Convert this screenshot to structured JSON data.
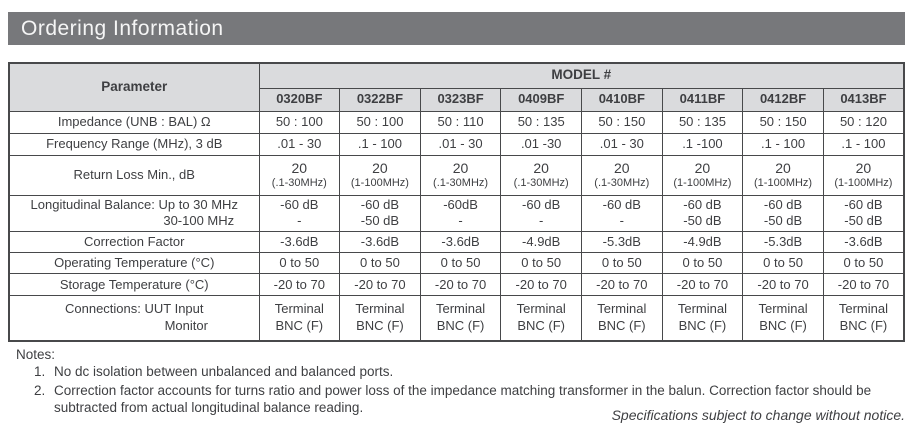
{
  "page": {
    "title": "Ordering Information"
  },
  "theme": {
    "title_bar_bg": "#77787B",
    "header_bg": "#DADBDD",
    "border": "#48494B",
    "text": "#3E3F42"
  },
  "table": {
    "parameter_header": "Parameter",
    "model_group_header": "MODEL #",
    "models": [
      "0320BF",
      "0322BF",
      "0323BF",
      "0409BF",
      "0410BF",
      "0411BF",
      "0412BF",
      "0413BF"
    ],
    "impedance": {
      "label": "Impedance (UNB : BAL) Ω",
      "values": [
        "50 : 100",
        "50 : 100",
        "50 : 110",
        "50 : 135",
        "50 : 150",
        "50 : 135",
        "50 : 150",
        "50 : 120"
      ]
    },
    "frequency_range": {
      "label": "Frequency Range (MHz), 3 dB",
      "values": [
        ".01 - 30",
        ".1 - 100",
        ".01 - 30",
        ".01 -30",
        ".01 - 30",
        ".1 -100",
        ".1 - 100",
        ".1 - 100"
      ]
    },
    "return_loss": {
      "label": "Return Loss Min., dB",
      "values": [
        {
          "main": "20",
          "sub": "(.1-30MHz)"
        },
        {
          "main": "20",
          "sub": "(1-100MHz)"
        },
        {
          "main": "20",
          "sub": "(.1-30MHz)"
        },
        {
          "main": "20",
          "sub": "(.1-30MHz)"
        },
        {
          "main": "20",
          "sub": "(.1-30MHz)"
        },
        {
          "main": "20",
          "sub": "(1-100MHz)"
        },
        {
          "main": "20",
          "sub": "(1-100MHz)"
        },
        {
          "main": "20",
          "sub": "(1-100MHz)"
        }
      ]
    },
    "longitudinal_balance": {
      "label_line1": "Longitudinal Balance: Up to 30 MHz",
      "label_line2": "30-100 MHz",
      "values": [
        {
          "line1": "-60 dB",
          "line2": "-"
        },
        {
          "line1": "-60 dB",
          "line2": "-50 dB"
        },
        {
          "line1": "-60dB",
          "line2": "-"
        },
        {
          "line1": "-60 dB",
          "line2": "-"
        },
        {
          "line1": "-60 dB",
          "line2": "-"
        },
        {
          "line1": "-60 dB",
          "line2": "-50 dB"
        },
        {
          "line1": "-60 dB",
          "line2": "-50 dB"
        },
        {
          "line1": "-60 dB",
          "line2": "-50 dB"
        }
      ]
    },
    "correction_factor": {
      "label": "Correction Factor",
      "values": [
        "-3.6dB",
        "-3.6dB",
        "-3.6dB",
        "-4.9dB",
        "-5.3dB",
        "-4.9dB",
        "-5.3dB",
        "-3.6dB"
      ]
    },
    "operating_temperature": {
      "label": "Operating Temperature (°C)",
      "values": [
        "0 to 50",
        "0 to 50",
        "0 to 50",
        "0 to 50",
        "0 to 50",
        "0 to 50",
        "0 to 50",
        "0 to 50"
      ]
    },
    "storage_temperature": {
      "label": "Storage Temperature (°C)",
      "values": [
        "-20 to 70",
        "-20 to 70",
        "-20 to 70",
        "-20 to 70",
        "-20 to 70",
        "-20 to 70",
        "-20 to 70",
        "-20 to 70"
      ]
    },
    "connections": {
      "label_line1": "Connections:  UUT Input",
      "label_line2": "Monitor",
      "values": [
        {
          "line1": "Terminal",
          "line2": "BNC (F)"
        },
        {
          "line1": "Terminal",
          "line2": "BNC (F)"
        },
        {
          "line1": "Terminal",
          "line2": "BNC (F)"
        },
        {
          "line1": "Terminal",
          "line2": "BNC (F)"
        },
        {
          "line1": "Terminal",
          "line2": "BNC (F)"
        },
        {
          "line1": "Terminal",
          "line2": "BNC (F)"
        },
        {
          "line1": "Terminal",
          "line2": "BNC (F)"
        },
        {
          "line1": "Terminal",
          "line2": "BNC (F)"
        }
      ]
    }
  },
  "notes": {
    "heading": "Notes:",
    "items": [
      "No dc isolation between unbalanced and balanced ports.",
      "Correction factor accounts for turns ratio and power loss of the impedance matching transformer in the balun. Correction factor should be subtracted from actual longitudinal balance reading."
    ],
    "footer": "Specifications subject to change without notice."
  }
}
